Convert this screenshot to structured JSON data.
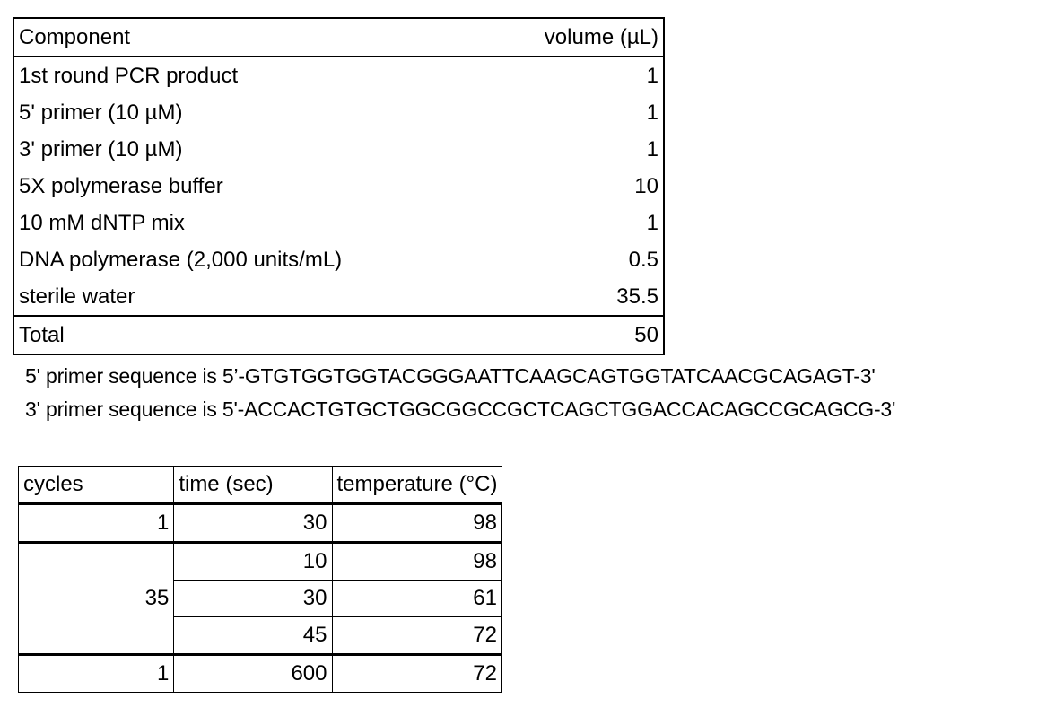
{
  "reaction_table": {
    "headers": [
      "Component",
      "volume (µL)"
    ],
    "rows": [
      [
        "1st round PCR product",
        "1"
      ],
      [
        "5' primer (10 µM)",
        "1"
      ],
      [
        "3' primer (10 µM)",
        "1"
      ],
      [
        "5X polymerase buffer",
        "10"
      ],
      [
        "10 mM dNTP mix",
        "1"
      ],
      [
        "DNA polymerase (2,000 units/mL)",
        "0.5"
      ],
      [
        "sterile water",
        "35.5"
      ]
    ],
    "total": [
      "Total",
      "50"
    ]
  },
  "sequences": [
    "5' primer sequence is 5’-GTGTGGTGGTACGGGAATTCAAGCAGTGGTATCAACGCAGAGT-3'",
    "3' primer sequence is 5'-ACCACTGTGCTGGCGGCCGCTCAGCTGGACCACAGCCGCAGCG-3'"
  ],
  "cycling_table": {
    "headers": [
      "cycles",
      "time (sec)",
      "temperature (°C)"
    ],
    "initial": {
      "cycles": "1",
      "time": "30",
      "temp": "98"
    },
    "loop": {
      "cycles": "35",
      "steps": [
        {
          "time": "10",
          "temp": "98"
        },
        {
          "time": "30",
          "temp": "61"
        },
        {
          "time": "45",
          "temp": "72"
        }
      ]
    },
    "final": {
      "cycles": "1",
      "time": "600",
      "temp": "72"
    }
  }
}
